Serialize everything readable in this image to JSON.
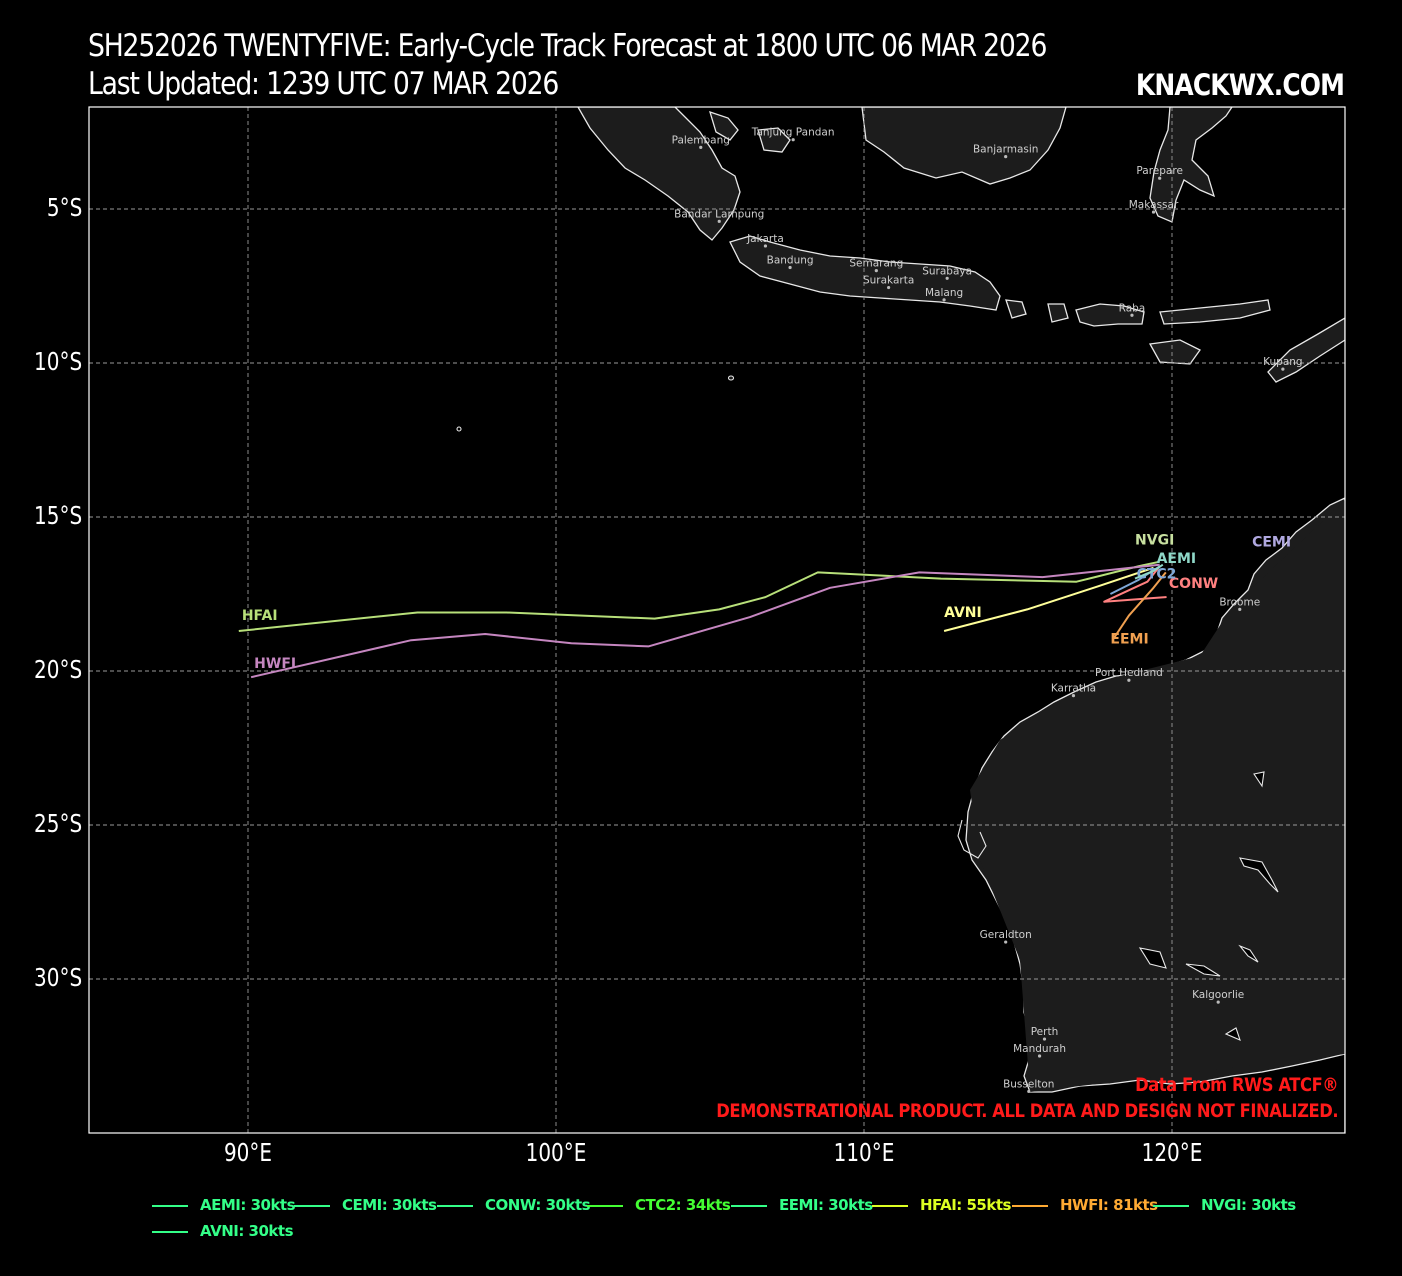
{
  "header": {
    "title_line1": "SH252026 TWENTYFIVE: Early-Cycle Track Forecast at 1800 UTC 06 MAR 2026",
    "title_line2": "Last Updated: 1239 UTC 07 MAR 2026",
    "brand": "KNACKWX.COM"
  },
  "map": {
    "lon_range": [
      85,
      126
    ],
    "lat_range": [
      -35.5,
      -1.8
    ],
    "y_ticks": [
      "5°S",
      "10°S",
      "15°S",
      "20°S",
      "25°S",
      "30°S"
    ],
    "x_ticks": [
      "90°E",
      "100°E",
      "110°E",
      "120°E"
    ],
    "land_color": "#1c1c1c",
    "coast_color": "#ffffff",
    "cities": [
      {
        "name": "Palembang",
        "lon": 104.7,
        "lat": -3.0
      },
      {
        "name": "Tanjung Pandan",
        "lon": 107.7,
        "lat": -2.75
      },
      {
        "name": "Banjarmasin",
        "lon": 114.6,
        "lat": -3.3
      },
      {
        "name": "Parepare",
        "lon": 119.6,
        "lat": -4.0
      },
      {
        "name": "Makassar",
        "lon": 119.4,
        "lat": -5.1
      },
      {
        "name": "Bandar Lampung",
        "lon": 105.3,
        "lat": -5.4
      },
      {
        "name": "Jakarta",
        "lon": 106.8,
        "lat": -6.2
      },
      {
        "name": "Bandung",
        "lon": 107.6,
        "lat": -6.9
      },
      {
        "name": "Semarang",
        "lon": 110.4,
        "lat": -7.0
      },
      {
        "name": "Surabaya",
        "lon": 112.7,
        "lat": -7.25
      },
      {
        "name": "Surakarta",
        "lon": 110.8,
        "lat": -7.55
      },
      {
        "name": "Malang",
        "lon": 112.6,
        "lat": -7.95
      },
      {
        "name": "Raba",
        "lon": 118.7,
        "lat": -8.45
      },
      {
        "name": "Kupang",
        "lon": 123.6,
        "lat": -10.2
      },
      {
        "name": "Broome",
        "lon": 122.2,
        "lat": -18.0
      },
      {
        "name": "Port Hedland",
        "lon": 118.6,
        "lat": -20.3
      },
      {
        "name": "Karratha",
        "lon": 116.8,
        "lat": -20.8
      },
      {
        "name": "Geraldton",
        "lon": 114.6,
        "lat": -28.8
      },
      {
        "name": "Kalgoorlie",
        "lon": 121.5,
        "lat": -30.75
      },
      {
        "name": "Perth",
        "lon": 115.86,
        "lat": -31.95
      },
      {
        "name": "Mandurah",
        "lon": 115.7,
        "lat": -32.5
      },
      {
        "name": "Busselton",
        "lon": 115.35,
        "lat": -33.65
      }
    ]
  },
  "tracks": [
    {
      "id": "HFAI",
      "label": "HFAI",
      "color": "#b8e07a",
      "label_lon": 89.8,
      "label_lat": -18.35,
      "points": [
        [
          89.7,
          -18.7
        ],
        [
          95.5,
          -18.1
        ],
        [
          98.4,
          -18.1
        ],
        [
          103.2,
          -18.3
        ],
        [
          105.3,
          -18.0
        ],
        [
          106.8,
          -17.6
        ],
        [
          108.5,
          -16.8
        ],
        [
          112.5,
          -17.0
        ],
        [
          116.9,
          -17.1
        ],
        [
          117.5,
          -16.95
        ],
        [
          118.9,
          -16.6
        ],
        [
          119.6,
          -16.45
        ]
      ]
    },
    {
      "id": "HWFI",
      "label": "HWFI",
      "color": "#c586c0",
      "label_lon": 90.2,
      "label_lat": -19.9,
      "points": [
        [
          90.1,
          -20.2
        ],
        [
          95.3,
          -19.0
        ],
        [
          97.7,
          -18.8
        ],
        [
          100.5,
          -19.1
        ],
        [
          103.0,
          -19.2
        ],
        [
          106.3,
          -18.25
        ],
        [
          108.9,
          -17.3
        ],
        [
          111.8,
          -16.8
        ],
        [
          115.8,
          -16.95
        ],
        [
          119.6,
          -16.55
        ]
      ]
    },
    {
      "id": "AVNI",
      "label": "AVNI",
      "color": "#ffff99",
      "label_lon": 112.6,
      "label_lat": -18.25,
      "points": [
        [
          112.6,
          -18.7
        ],
        [
          115.3,
          -18.0
        ],
        [
          117.6,
          -17.25
        ],
        [
          119.4,
          -16.65
        ]
      ]
    },
    {
      "id": "CONW",
      "label": "CONW",
      "color": "#ff8080",
      "label_lon": 119.9,
      "label_lat": -17.3,
      "points": [
        [
          117.8,
          -17.75
        ],
        [
          119.8,
          -17.6
        ],
        [
          117.8,
          -17.75
        ],
        [
          119.2,
          -17.1
        ],
        [
          119.6,
          -16.6
        ]
      ]
    },
    {
      "id": "EEMI",
      "label": "EEMI",
      "color": "#f0a050",
      "label_lon": 118.0,
      "label_lat": -19.1,
      "points": [
        [
          118.1,
          -18.95
        ],
        [
          118.6,
          -18.2
        ],
        [
          119.4,
          -17.3
        ],
        [
          119.8,
          -16.8
        ]
      ]
    },
    {
      "id": "CTC2",
      "label": "CTC2",
      "color": "#7fa8d8",
      "label_lon": 118.85,
      "label_lat": -17.0,
      "points": [
        [
          118.0,
          -17.5
        ],
        [
          118.9,
          -17.05
        ],
        [
          119.6,
          -16.6
        ]
      ]
    },
    {
      "id": "AEMI",
      "label": "AEMI",
      "color": "#8fd8c8",
      "label_lon": 119.5,
      "label_lat": -16.5,
      "points": [
        [
          118.8,
          -17.0
        ],
        [
          119.4,
          -16.75
        ],
        [
          119.7,
          -16.55
        ]
      ]
    },
    {
      "id": "NVGI",
      "label": "NVGI",
      "color": "#c8e0a0",
      "label_lon": 118.8,
      "label_lat": -15.9,
      "points": [
        [
          119.6,
          -16.5
        ]
      ]
    },
    {
      "id": "CEMI",
      "label": "CEMI",
      "color": "#b0a8e0",
      "label_lon": 122.6,
      "label_lat": -15.95,
      "points": [
        [
          119.6,
          -16.5
        ]
      ]
    }
  ],
  "legend": [
    {
      "label": "AEMI: 30kts",
      "color": "#33ff88"
    },
    {
      "label": "CEMI: 30kts",
      "color": "#33ff88"
    },
    {
      "label": "CONW: 30kts",
      "color": "#33ff88"
    },
    {
      "label": "CTC2: 34kts",
      "color": "#44ff33"
    },
    {
      "label": "EEMI: 30kts",
      "color": "#33ff88"
    },
    {
      "label": "HFAI: 55kts",
      "color": "#ddff22"
    },
    {
      "label": "HWFI: 81kts",
      "color": "#ffaa33"
    },
    {
      "label": "NVGI: 30kts",
      "color": "#33ff88"
    },
    {
      "label": "AVNI: 30kts",
      "color": "#33ff88"
    }
  ],
  "notes": {
    "source": "Data From RWS ATCF®",
    "disclaimer": "DEMONSTRATIONAL PRODUCT. ALL DATA AND DESIGN NOT FINALIZED."
  }
}
